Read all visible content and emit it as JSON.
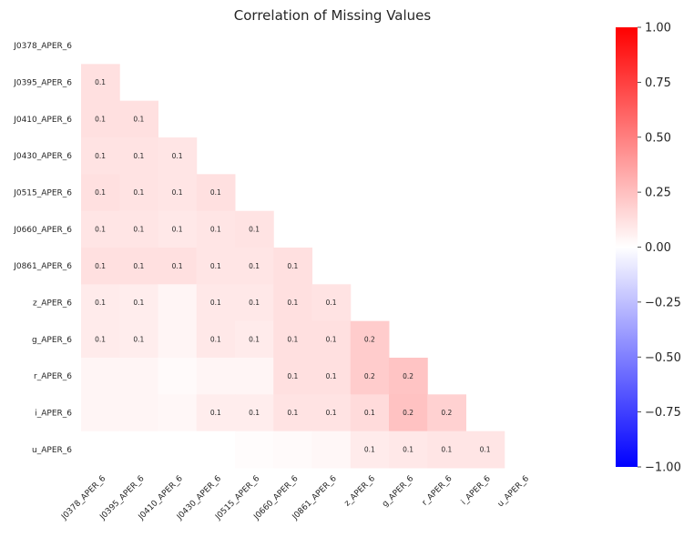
{
  "chart_data": {
    "type": "heatmap",
    "title": "Correlation of Missing Values",
    "xlabel": "",
    "ylabel": "",
    "labels": [
      "J0378_APER_6",
      "J0395_APER_6",
      "J0410_APER_6",
      "J0430_APER_6",
      "J0515_APER_6",
      "J0660_APER_6",
      "J0861_APER_6",
      "z_APER_6",
      "g_APER_6",
      "r_APER_6",
      "i_APER_6",
      "u_APER_6"
    ],
    "mask": "upper-triangle-including-diagonal",
    "values": [
      [
        null,
        null,
        null,
        null,
        null,
        null,
        null,
        null,
        null,
        null,
        null,
        null
      ],
      [
        0.12,
        null,
        null,
        null,
        null,
        null,
        null,
        null,
        null,
        null,
        null,
        null
      ],
      [
        0.12,
        0.12,
        null,
        null,
        null,
        null,
        null,
        null,
        null,
        null,
        null,
        null
      ],
      [
        0.11,
        0.11,
        0.1,
        null,
        null,
        null,
        null,
        null,
        null,
        null,
        null,
        null
      ],
      [
        0.12,
        0.11,
        0.1,
        0.12,
        null,
        null,
        null,
        null,
        null,
        null,
        null,
        null
      ],
      [
        0.1,
        0.1,
        0.09,
        0.1,
        0.11,
        null,
        null,
        null,
        null,
        null,
        null,
        null
      ],
      [
        0.12,
        0.12,
        0.12,
        0.1,
        0.1,
        0.12,
        null,
        null,
        null,
        null,
        null,
        null
      ],
      [
        0.08,
        0.07,
        0.04,
        0.09,
        0.09,
        0.12,
        0.11,
        null,
        null,
        null,
        null,
        null
      ],
      [
        0.08,
        0.07,
        0.04,
        0.09,
        0.08,
        0.12,
        0.12,
        0.2,
        null,
        null,
        null,
        null
      ],
      [
        0.04,
        0.04,
        0.02,
        0.04,
        0.04,
        0.12,
        0.12,
        0.2,
        0.23,
        null,
        null,
        null
      ],
      [
        0.04,
        0.04,
        0.03,
        0.07,
        0.07,
        0.11,
        0.11,
        0.14,
        0.24,
        0.18,
        null,
        null
      ],
      [
        0.0,
        0.0,
        0.0,
        0.0,
        0.01,
        0.02,
        0.03,
        0.08,
        0.09,
        0.1,
        0.1,
        null
      ]
    ],
    "annotations": [
      [
        "",
        "",
        "",
        "",
        "",
        "",
        "",
        "",
        "",
        "",
        "",
        ""
      ],
      [
        "0.1",
        "",
        "",
        "",
        "",
        "",
        "",
        "",
        "",
        "",
        "",
        ""
      ],
      [
        "0.1",
        "0.1",
        "",
        "",
        "",
        "",
        "",
        "",
        "",
        "",
        "",
        ""
      ],
      [
        "0.1",
        "0.1",
        "0.1",
        "",
        "",
        "",
        "",
        "",
        "",
        "",
        "",
        ""
      ],
      [
        "0.1",
        "0.1",
        "0.1",
        "0.1",
        "",
        "",
        "",
        "",
        "",
        "",
        "",
        ""
      ],
      [
        "0.1",
        "0.1",
        "0.1",
        "0.1",
        "0.1",
        "",
        "",
        "",
        "",
        "",
        "",
        ""
      ],
      [
        "0.1",
        "0.1",
        "0.1",
        "0.1",
        "0.1",
        "0.1",
        "",
        "",
        "",
        "",
        "",
        ""
      ],
      [
        "0.1",
        "0.1",
        "",
        "0.1",
        "0.1",
        "0.1",
        "0.1",
        "",
        "",
        "",
        "",
        ""
      ],
      [
        "0.1",
        "0.1",
        "",
        "0.1",
        "0.1",
        "0.1",
        "0.1",
        "0.2",
        "",
        "",
        "",
        ""
      ],
      [
        "",
        "",
        "",
        "",
        "",
        "0.1",
        "0.1",
        "0.2",
        "0.2",
        "",
        "",
        ""
      ],
      [
        "",
        "",
        "",
        "0.1",
        "0.1",
        "0.1",
        "0.1",
        "0.1",
        "0.2",
        "0.2",
        "",
        ""
      ],
      [
        "",
        "",
        "",
        "",
        "",
        "",
        "",
        "0.1",
        "0.1",
        "0.1",
        "0.1",
        ""
      ]
    ],
    "colormap": "bwr",
    "colormap_colors": {
      "min": "#0000ff",
      "mid": "#ffffff",
      "max": "#ff0000"
    },
    "vmin": -1.0,
    "vmax": 1.0,
    "colorbar_ticks": [
      1.0,
      0.75,
      0.5,
      0.25,
      0.0,
      -0.25,
      -0.5,
      -0.75,
      -1.0
    ],
    "colorbar_tick_labels": [
      "1.00",
      "0.75",
      "0.50",
      "0.25",
      "0.00",
      "−0.25",
      "−0.50",
      "−0.75",
      "−1.00"
    ],
    "colorbar_position": "right",
    "grid": false
  }
}
